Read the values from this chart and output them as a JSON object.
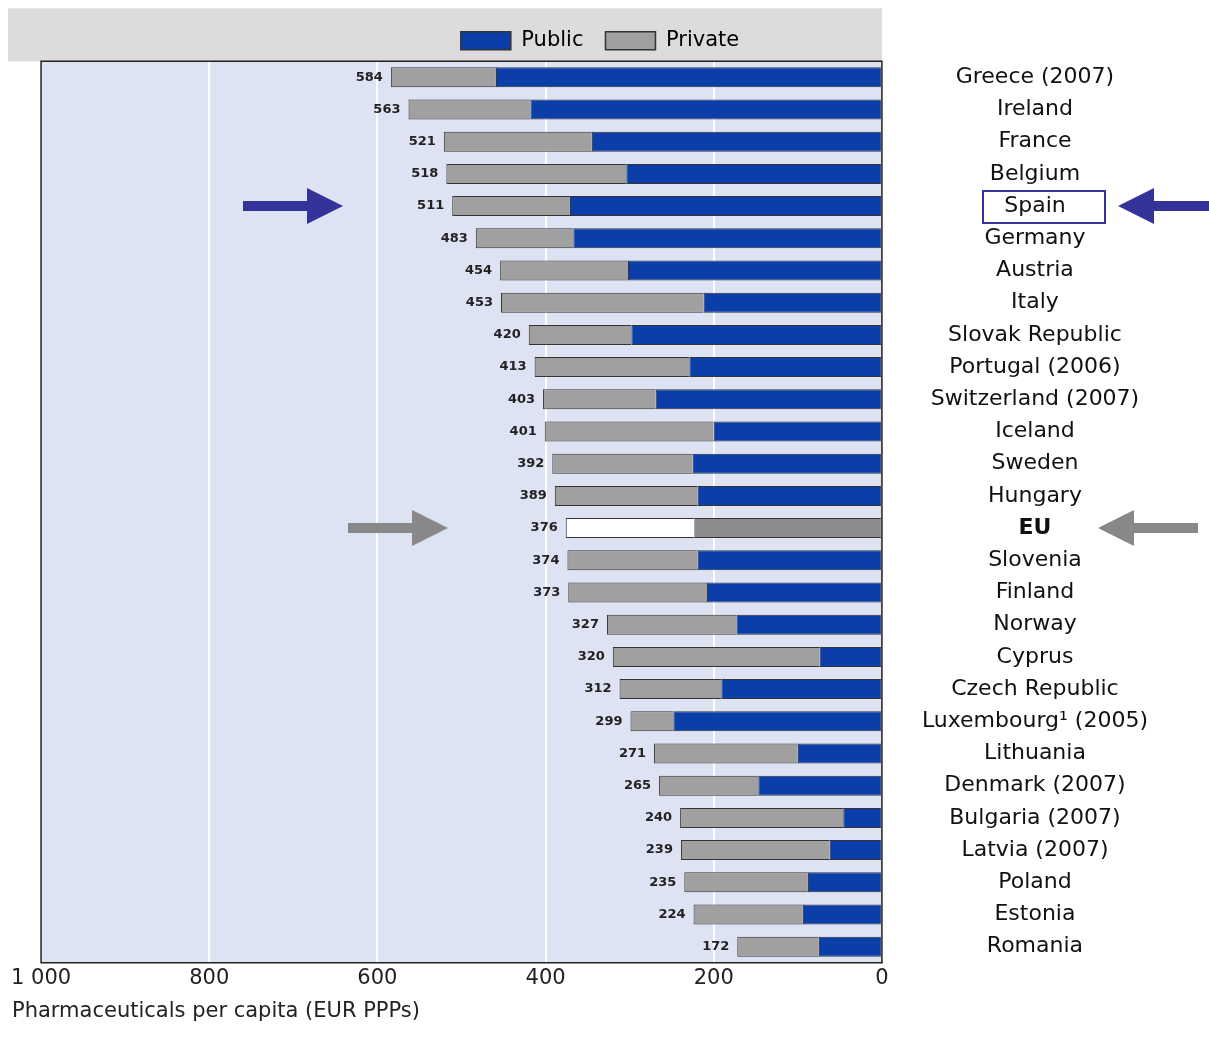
{
  "chart_data": {
    "type": "bar",
    "orientation": "horizontal",
    "stacked": true,
    "xlabel": "Pharmaceuticals per capita (EUR PPPs)",
    "categories": [
      "Greece (2007)",
      "Ireland",
      "France",
      "Belgium",
      "Spain",
      "Germany",
      "Austria",
      "Italy",
      "Slovak Republic",
      "Portugal (2006)",
      "Switzerland (2007)",
      "Iceland",
      "Sweden",
      "Hungary",
      "EU",
      "Slovenia",
      "Finland",
      "Norway",
      "Cyprus",
      "Czech Republic",
      "Luxembourg¹ (2005)",
      "Lithuania",
      "Denmark (2007)",
      "Bulgaria (2007)",
      "Latvia (2007)",
      "Poland",
      "Estonia",
      "Romania"
    ],
    "series": [
      {
        "name": "Public",
        "color": "#0b3ea8",
        "colors": [
          "#0b3ea8",
          "#0b3ea8",
          "#0b3ea8",
          "#0b3ea8",
          "#0b3ea8",
          "#0b3ea8",
          "#0b3ea8",
          "#0b3ea8",
          "#0b3ea8",
          "#0b3ea8",
          "#0b3ea8",
          "#0b3ea8",
          "#0b3ea8",
          "#0b3ea8",
          "#8c8c8c",
          "#0b3ea8",
          "#0b3ea8",
          "#0b3ea8",
          "#0b3ea8",
          "#0b3ea8",
          "#0b3ea8",
          "#0b3ea8",
          "#0b3ea8",
          "#0b3ea8",
          "#0b3ea8",
          "#0b3ea8",
          "#0b3ea8",
          "#0b3ea8"
        ],
        "values": [
          459,
          418,
          345,
          304,
          371,
          367,
          302,
          212,
          298,
          229,
          269,
          200,
          225,
          219,
          223,
          219,
          208,
          173,
          74,
          191,
          248,
          100,
          147,
          46,
          62,
          88,
          94,
          75
        ]
      },
      {
        "name": "Private",
        "color": "#a0a0a0",
        "colors": [
          "#a0a0a0",
          "#a0a0a0",
          "#a0a0a0",
          "#a0a0a0",
          "#a0a0a0",
          "#a0a0a0",
          "#a0a0a0",
          "#a0a0a0",
          "#a0a0a0",
          "#a0a0a0",
          "#a0a0a0",
          "#a0a0a0",
          "#a0a0a0",
          "#a0a0a0",
          "#ffffff",
          "#a0a0a0",
          "#a0a0a0",
          "#a0a0a0",
          "#a0a0a0",
          "#a0a0a0",
          "#a0a0a0",
          "#a0a0a0",
          "#a0a0a0",
          "#a0a0a0",
          "#a0a0a0",
          "#a0a0a0",
          "#a0a0a0",
          "#a0a0a0"
        ],
        "values": [
          125,
          145,
          176,
          214,
          140,
          116,
          152,
          241,
          122,
          184,
          134,
          201,
          167,
          170,
          153,
          155,
          165,
          154,
          246,
          121,
          51,
          171,
          118,
          194,
          177,
          147,
          130,
          97
        ]
      }
    ],
    "totals": [
      "584",
      "563",
      "521",
      "518",
      "511",
      "483",
      "454",
      "453",
      "420",
      "413",
      "403",
      "401",
      "392",
      "389",
      "376",
      "374",
      "373",
      "327",
      "320",
      "312",
      "299",
      "271",
      "265",
      "240",
      "239",
      "235",
      "224",
      "172"
    ],
    "xlim": [
      1000,
      0
    ],
    "xticks": [
      {
        "value": 1000,
        "label": "1 000"
      },
      800,
      600,
      400,
      200,
      0
    ],
    "grid": "x",
    "legend": "top"
  }
}
